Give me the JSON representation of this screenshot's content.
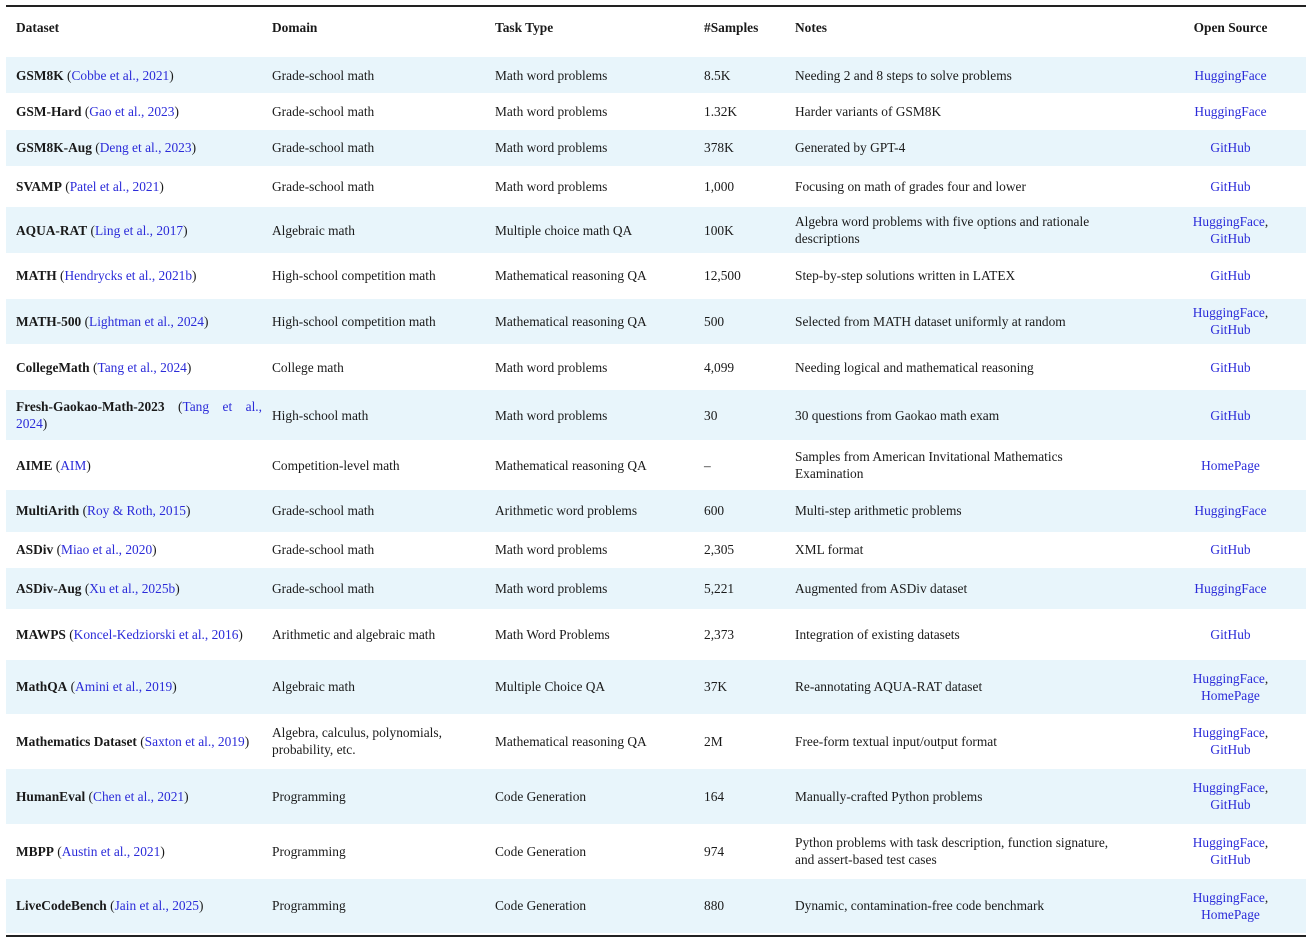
{
  "header": [
    "Dataset",
    "Domain",
    "Task Type",
    "#Samples",
    "Notes",
    "Open Source"
  ],
  "colors": {
    "link": "#2b2bd9",
    "shaded_row": "#e8f5fb"
  },
  "rows": [
    {
      "name": "GSM8K",
      "cite": "Cobbe et al., 2021",
      "domain": "Grade-school math",
      "task": "Math word problems",
      "samples": "8.5K",
      "notes": "Needing 2 and 8 steps to solve problems",
      "source": [
        "HuggingFace"
      ]
    },
    {
      "name": "GSM-Hard",
      "cite": "Gao et al., 2023",
      "domain": "Grade-school math",
      "task": "Math word problems",
      "samples": "1.32K",
      "notes": "Harder variants of GSM8K",
      "source": [
        "HuggingFace"
      ]
    },
    {
      "name": "GSM8K-Aug",
      "cite": "Deng et al., 2023",
      "domain": "Grade-school math",
      "task": "Math word problems",
      "samples": "378K",
      "notes": "Generated by GPT-4",
      "source": [
        "GitHub"
      ]
    },
    {
      "name": "SVAMP",
      "cite": "Patel et al., 2021",
      "domain": "Grade-school math",
      "task": "Math word problems",
      "samples": "1,000",
      "notes": "Focusing on math of grades four and lower",
      "source": [
        "GitHub"
      ]
    },
    {
      "name": "AQUA-RAT",
      "cite": "Ling et al., 2017",
      "domain": "Algebraic math",
      "task": "Multiple choice math QA",
      "samples": "100K",
      "notes": "Algebra word problems with five options and ratio­nale descriptions",
      "source": [
        "HuggingFace",
        "GitHub"
      ]
    },
    {
      "name": "MATH",
      "cite": "Hendrycks et al., 2021b",
      "domain": "High-school competition math",
      "task": "Mathematical reasoning QA",
      "samples": "12,500",
      "notes": "Step-by-step solutions written in LATEX",
      "source": [
        "GitHub"
      ]
    },
    {
      "name": "MATH-500",
      "cite": "Lightman et al., 2024",
      "domain": "High-school competition math",
      "task": "Mathematical reasoning QA",
      "samples": "500",
      "notes": "Selected from MATH dataset uniformly at random",
      "source": [
        "HuggingFace",
        "GitHub"
      ]
    },
    {
      "name": "CollegeMath",
      "cite": "Tang et al., 2024",
      "domain": "College math",
      "task": "Math word problems",
      "samples": "4,099",
      "notes": "Needing logical and mathematical reasoning",
      "source": [
        "GitHub"
      ]
    },
    {
      "name": "Fresh-Gaokao-Math-2023",
      "cite": "Tang et al., 2024",
      "domain": "High-school math",
      "task": "Math word problems",
      "samples": "30",
      "notes": "30 questions from Gaokao math exam",
      "source": [
        "GitHub"
      ]
    },
    {
      "name": "AIME",
      "cite": "AIM",
      "domain": "Competition-level math",
      "task": "Mathematical reasoning QA",
      "samples": "–",
      "notes": "Samples from American Invitational Mathematics Examination",
      "source": [
        "HomePage"
      ]
    },
    {
      "name": "MultiArith",
      "cite": "Roy & Roth, 2015",
      "domain": "Grade-school math",
      "task": "Arithmetic word problems",
      "samples": "600",
      "notes": "Multi-step arithmetic problems",
      "source": [
        "HuggingFace"
      ]
    },
    {
      "name": "ASDiv",
      "cite": "Miao et al., 2020",
      "domain": "Grade-school math",
      "task": "Math word problems",
      "samples": "2,305",
      "notes": "XML format",
      "source": [
        "GitHub"
      ]
    },
    {
      "name": "ASDiv-Aug",
      "cite": "Xu et al., 2025b",
      "domain": "Grade-school math",
      "task": "Math word problems",
      "samples": "5,221",
      "notes": "Augmented from ASDiv dataset",
      "source": [
        "HuggingFace"
      ]
    },
    {
      "name": "MAWPS",
      "cite": "Koncel-Kedziorski et al., 2016",
      "domain": "Arithmetic and algebraic math",
      "task": "Math Word Problems",
      "samples": "2,373",
      "notes": "Integration of existing datasets",
      "source": [
        "GitHub"
      ]
    },
    {
      "name": "MathQA",
      "cite": "Amini et al., 2019",
      "domain": "Algebraic math",
      "task": "Multiple Choice QA",
      "samples": "37K",
      "notes": "Re-annotating AQUA-RAT dataset",
      "source": [
        "HuggingFace",
        "HomePage"
      ]
    },
    {
      "name": "Mathematics Dataset",
      "cite": "Saxton et al., 2019",
      "domain": "Algebra, calculus, polynomi­als, probability, etc.",
      "task": "Mathematical reasoning QA",
      "samples": "2M",
      "notes": "Free-form textual input/output format",
      "source": [
        "HuggingFace",
        "GitHub"
      ]
    },
    {
      "name": "HumanEval",
      "cite": "Chen et al., 2021",
      "domain": "Programming",
      "task": "Code Generation",
      "samples": "164",
      "notes": "Manually-crafted Python problems",
      "source": [
        "HuggingFace",
        "GitHub"
      ]
    },
    {
      "name": "MBPP",
      "cite": "Austin et al., 2021",
      "domain": "Programming",
      "task": "Code Generation",
      "samples": "974",
      "notes": "Python problems with task description, function signature, and assert-based test cases",
      "source": [
        "HuggingFace",
        "GitHub"
      ]
    },
    {
      "name": "LiveCodeBench",
      "cite": "Jain et al., 2025",
      "domain": "Programming",
      "task": "Code Generation",
      "samples": "880",
      "notes": "Dynamic, contamination-free code benchmark",
      "source": [
        "HuggingFace",
        "HomePage"
      ]
    }
  ]
}
